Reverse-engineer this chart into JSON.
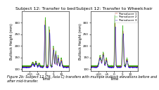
{
  "title_left": "Subject 12: Transfer to bed",
  "title_right": "Subject 12: Transfer to Wheelchair",
  "ylabel": "Buttock Height (mm)",
  "xlabel": "Time",
  "legend_labels": [
    "Transducer 1",
    "Transducer 2",
    "Transducer 3"
  ],
  "colors": [
    "#cc2200",
    "#22aa00",
    "#2200cc"
  ],
  "xlim": [
    -15,
    15
  ],
  "ylim": [
    90,
    350
  ],
  "yticks": [
    100,
    150,
    200,
    250,
    300
  ],
  "xticks": [
    -10,
    -5,
    0,
    5,
    10
  ],
  "caption": "Figure 2b: Subject 12 (T6, Asia C) transfers with multiple buttock elevations before and after mid-transfer.",
  "title_fontsize": 4.5,
  "label_fontsize": 3.5,
  "tick_fontsize": 3.0,
  "legend_fontsize": 3.0,
  "caption_fontsize": 3.5
}
